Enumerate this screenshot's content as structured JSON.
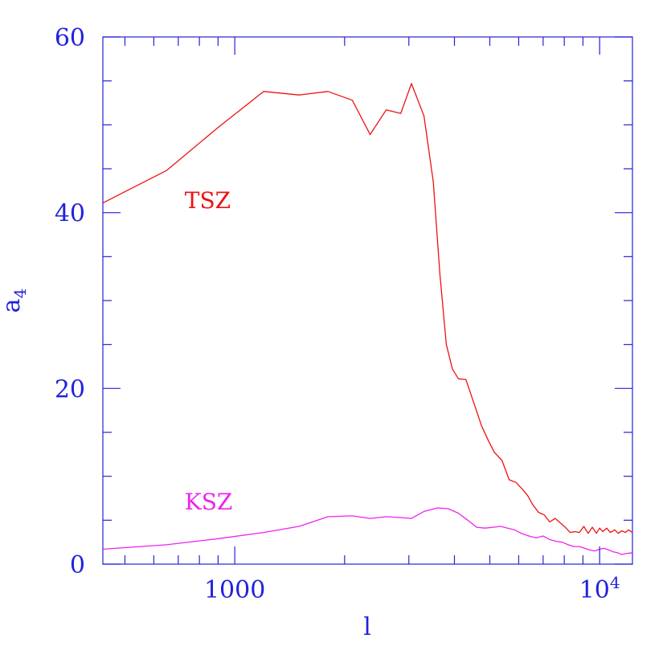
{
  "chart_data": {
    "type": "line",
    "title": "",
    "xlabel": "l",
    "ylabel_base": "a",
    "ylabel_sub": "4",
    "xscale": "log",
    "xlim": [
      435,
      12300
    ],
    "ylim": [
      0,
      60
    ],
    "x_ticks": [
      {
        "value": 1000,
        "label": "1000"
      },
      {
        "value": 10000,
        "label": "10",
        "sup": "4"
      }
    ],
    "y_ticks": [
      {
        "value": 0,
        "label": "0"
      },
      {
        "value": 20,
        "label": "20"
      },
      {
        "value": 40,
        "label": "40"
      },
      {
        "value": 60,
        "label": "60"
      }
    ],
    "colors": {
      "axis": "#2222dd",
      "tsz": "#ee1111",
      "ksz": "#ee22ee"
    },
    "series": [
      {
        "name": "TSZ",
        "color": "#ee1111",
        "x": [
          435,
          650,
          900,
          1200,
          1500,
          1800,
          2100,
          2350,
          2600,
          2850,
          3050,
          3300,
          3500,
          3650,
          3800,
          3950,
          4100,
          4300,
          4550,
          4750,
          4950,
          5150,
          5400,
          5650,
          5900,
          6150,
          6350,
          6550,
          6800,
          7050,
          7300,
          7550,
          7800,
          8050,
          8300,
          8550,
          8800,
          9050,
          9300,
          9550,
          9800,
          10000,
          10200,
          10450,
          10700,
          11000,
          11250,
          11500,
          11750,
          12000,
          12300
        ],
        "y": [
          41.1,
          44.8,
          49.7,
          53.8,
          53.4,
          53.8,
          52.8,
          48.9,
          51.7,
          51.3,
          54.7,
          51.0,
          43.5,
          33.0,
          25.0,
          22.2,
          21.1,
          21.0,
          18.0,
          15.7,
          14.1,
          12.7,
          11.8,
          9.6,
          9.3,
          8.5,
          7.8,
          6.8,
          5.9,
          5.6,
          4.8,
          5.2,
          4.7,
          4.2,
          3.6,
          3.7,
          3.6,
          4.3,
          3.5,
          4.2,
          3.5,
          4.1,
          3.7,
          4.1,
          3.6,
          3.9,
          3.5,
          3.8,
          3.6,
          3.9,
          3.6
        ]
      },
      {
        "name": "KSZ",
        "color": "#ee22ee",
        "x": [
          435,
          650,
          900,
          1200,
          1500,
          1800,
          2100,
          2350,
          2600,
          2850,
          3050,
          3300,
          3600,
          3850,
          4100,
          4350,
          4600,
          4850,
          5100,
          5350,
          5600,
          5850,
          6100,
          6400,
          6700,
          7000,
          7300,
          7600,
          7900,
          8200,
          8500,
          8800,
          9100,
          9400,
          9700,
          10000,
          10300,
          10600,
          10900,
          11200,
          11500,
          11800,
          12300
        ],
        "y": [
          1.7,
          2.2,
          2.9,
          3.6,
          4.3,
          5.4,
          5.5,
          5.2,
          5.4,
          5.3,
          5.2,
          6.0,
          6.4,
          6.3,
          5.8,
          5.0,
          4.2,
          4.1,
          4.2,
          4.3,
          4.1,
          3.9,
          3.5,
          3.2,
          3.0,
          3.2,
          2.8,
          2.6,
          2.5,
          2.2,
          2.0,
          2.0,
          1.8,
          1.6,
          1.5,
          1.7,
          1.8,
          1.6,
          1.4,
          1.3,
          1.1,
          1.2,
          1.3
        ]
      }
    ],
    "annotations": [
      {
        "text": "TSZ",
        "series": "TSZ",
        "x": 700,
        "y": 40.5
      },
      {
        "text": "KSZ",
        "series": "KSZ",
        "x": 700,
        "y": 6.2
      }
    ]
  }
}
